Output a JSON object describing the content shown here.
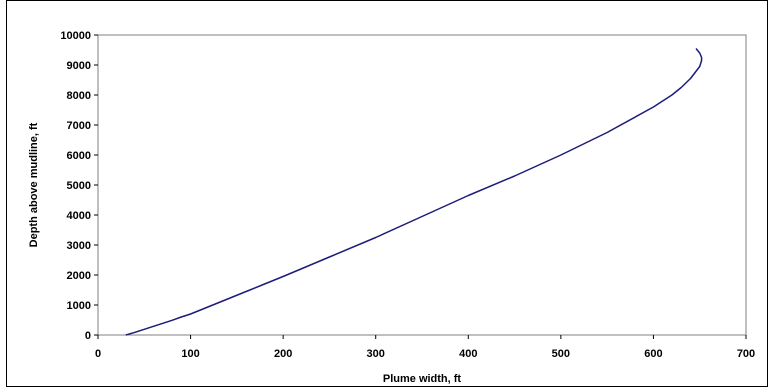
{
  "chart_data": {
    "type": "line",
    "title": "",
    "xlabel": "Plume width, ft",
    "ylabel": "Depth above mudline, ft",
    "xlim": [
      0,
      700
    ],
    "ylim": [
      0,
      10000
    ],
    "x_ticks": [
      0,
      100,
      200,
      300,
      400,
      500,
      600,
      700
    ],
    "y_ticks": [
      0,
      1000,
      2000,
      3000,
      4000,
      5000,
      6000,
      7000,
      8000,
      9000,
      10000
    ],
    "grid": "off",
    "legend": "none",
    "series": [
      {
        "color": "#1c1c7c",
        "x": [
          30,
          40,
          50,
          60,
          70,
          80,
          90,
          100,
          120,
          140,
          160,
          180,
          200,
          250,
          300,
          350,
          400,
          450,
          500,
          550,
          600,
          620,
          630,
          640,
          645,
          650,
          652,
          652,
          650,
          646
        ],
        "y": [
          0,
          90,
          190,
          290,
          390,
          490,
          600,
          700,
          950,
          1200,
          1450,
          1700,
          1950,
          2600,
          3250,
          3950,
          4650,
          5300,
          6000,
          6750,
          7600,
          8000,
          8250,
          8550,
          8750,
          8950,
          9150,
          9250,
          9400,
          9550
        ]
      }
    ]
  }
}
